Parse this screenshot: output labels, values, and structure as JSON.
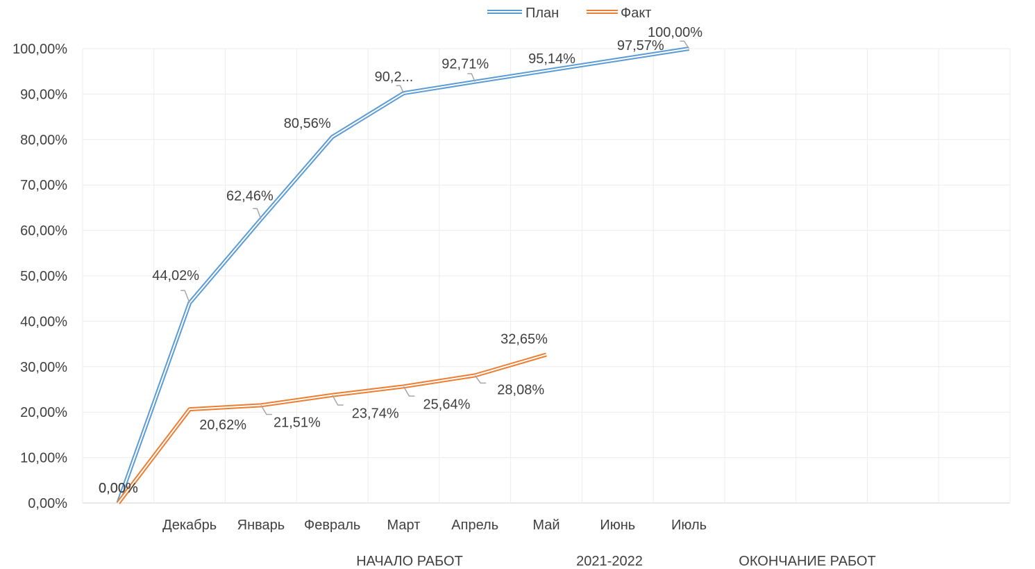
{
  "chart_data": {
    "type": "line",
    "title": "",
    "xlabel": "",
    "ylabel": "",
    "ylim": [
      0,
      100
    ],
    "ytick_labels": [
      "0,00%",
      "10,00%",
      "20,00%",
      "30,00%",
      "40,00%",
      "50,00%",
      "60,00%",
      "70,00%",
      "80,00%",
      "90,00%",
      "100,00%"
    ],
    "categories": [
      "",
      "Декабрь",
      "Январь",
      "Февраль",
      "Март",
      "Апрель",
      "Май",
      "Июнь",
      "Июль",
      "",
      "",
      "",
      ""
    ],
    "bottom_titles": [
      "НАЧАЛО РАБОТ",
      "2021-2022",
      "ОКОНЧАНИЕ РАБОТ"
    ],
    "grid": true,
    "legend_position": "top",
    "series": [
      {
        "name": "План",
        "color": "#5b9bd5",
        "x": [
          0,
          1,
          2,
          3,
          4,
          5,
          6,
          7,
          8
        ],
        "values": [
          0,
          44.02,
          62.46,
          80.56,
          90.2,
          92.71,
          95.14,
          97.57,
          100
        ],
        "labels": [
          "0,00%",
          "44,02%",
          "62,46%",
          "80,56%",
          "90,2...",
          "92,71%",
          "95,14%",
          "97,57%",
          "100,00%"
        ]
      },
      {
        "name": "Факт",
        "color": "#ed7d31",
        "x": [
          0,
          1,
          2,
          3,
          4,
          5,
          6
        ],
        "values": [
          0,
          20.62,
          21.51,
          23.74,
          25.64,
          28.08,
          32.65
        ],
        "labels": [
          "0,00%",
          "20,62%",
          "21,51%",
          "23,74%",
          "25,64%",
          "28,08%",
          "32,65%"
        ]
      }
    ]
  }
}
